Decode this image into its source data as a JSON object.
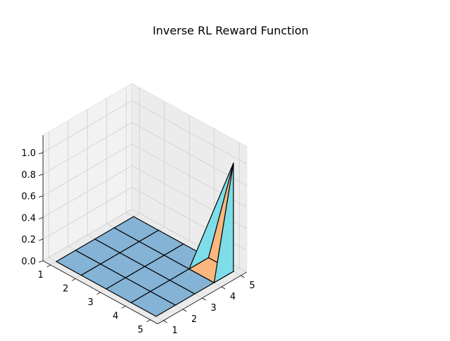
{
  "chart_data": {
    "type": "surface3d",
    "title": "Inverse RL Reward Function",
    "xlabel": "",
    "ylabel": "",
    "zlabel": "",
    "x_ticks": [
      "1",
      "2",
      "3",
      "4",
      "5"
    ],
    "y_ticks": [
      "1",
      "2",
      "3",
      "4",
      "5"
    ],
    "z_ticks": [
      "0.0",
      "0.2",
      "0.4",
      "0.6",
      "0.8",
      "1.0"
    ],
    "x": [
      1,
      2,
      3,
      4,
      5
    ],
    "y": [
      1,
      2,
      3,
      4,
      5
    ],
    "z": [
      [
        0,
        0,
        0,
        0,
        0
      ],
      [
        0,
        0,
        0,
        0,
        0
      ],
      [
        0,
        0,
        0,
        0,
        0
      ],
      [
        0,
        0,
        0,
        0,
        0
      ],
      [
        0,
        0,
        0,
        0,
        1
      ]
    ],
    "zlim": [
      0,
      1
    ],
    "grid": true,
    "colors": {
      "flat": "#85b3d6",
      "peak_face": "#7ddde8",
      "warm_face": "#fcb77f",
      "pane": "#f2f2f2",
      "edge": "#000000"
    }
  }
}
